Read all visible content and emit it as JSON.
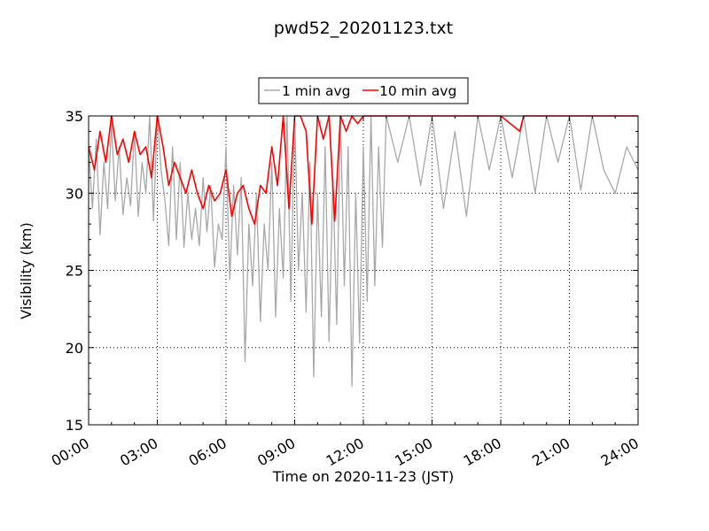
{
  "chart_data": {
    "type": "line",
    "title": "pwd52_20201123.txt",
    "xlabel": "Time on 2020-11-23 (JST)",
    "ylabel": "Visibility (km)",
    "xlim": [
      "00:00",
      "24:00"
    ],
    "ylim": [
      15,
      35
    ],
    "x_ticks": [
      "00:00",
      "03:00",
      "06:00",
      "09:00",
      "12:00",
      "15:00",
      "18:00",
      "21:00",
      "24:00"
    ],
    "y_ticks": [
      "15",
      "20",
      "25",
      "30",
      "35"
    ],
    "grid": true,
    "legend": {
      "placement": "top-center",
      "entries": [
        "1 min avg",
        "10 min avg"
      ]
    },
    "colors": {
      "one_min": "#a8a8a8",
      "ten_min": "#ff0000"
    },
    "series": [
      {
        "name": "1 min avg",
        "color": "#a8a8a8",
        "description_points": [
          [
            "00:00",
            33.0
          ],
          [
            "00:10",
            29.0
          ],
          [
            "00:20",
            33.5
          ],
          [
            "00:30",
            27.3
          ],
          [
            "00:40",
            32.0
          ],
          [
            "00:50",
            29.0
          ],
          [
            "01:00",
            34.5
          ],
          [
            "01:10",
            29.5
          ],
          [
            "01:20",
            33.0
          ],
          [
            "01:30",
            28.6
          ],
          [
            "01:40",
            31.0
          ],
          [
            "01:50",
            29.2
          ],
          [
            "02:00",
            34.0
          ],
          [
            "02:10",
            28.5
          ],
          [
            "02:20",
            32.0
          ],
          [
            "02:30",
            30.0
          ],
          [
            "02:40",
            35.0
          ],
          [
            "02:50",
            28.2
          ],
          [
            "03:00",
            35.0
          ],
          [
            "03:10",
            31.5
          ],
          [
            "03:20",
            29.5
          ],
          [
            "03:30",
            26.6
          ],
          [
            "03:40",
            33.0
          ],
          [
            "03:50",
            27.0
          ],
          [
            "04:00",
            32.0
          ],
          [
            "04:10",
            26.5
          ],
          [
            "04:20",
            30.0
          ],
          [
            "04:30",
            27.0
          ],
          [
            "04:40",
            29.0
          ],
          [
            "04:50",
            26.6
          ],
          [
            "05:00",
            31.0
          ],
          [
            "05:10",
            27.5
          ],
          [
            "05:20",
            30.5
          ],
          [
            "05:30",
            25.2
          ],
          [
            "05:40",
            28.0
          ],
          [
            "05:50",
            27.0
          ],
          [
            "06:00",
            33.0
          ],
          [
            "06:10",
            24.4
          ],
          [
            "06:20",
            30.5
          ],
          [
            "06:30",
            26.0
          ],
          [
            "06:40",
            31.0
          ],
          [
            "06:50",
            19.1
          ],
          [
            "07:00",
            28.0
          ],
          [
            "07:10",
            24.0
          ],
          [
            "07:20",
            30.0
          ],
          [
            "07:30",
            21.7
          ],
          [
            "07:40",
            28.0
          ],
          [
            "07:50",
            25.0
          ],
          [
            "08:00",
            32.0
          ],
          [
            "08:10",
            22.0
          ],
          [
            "08:20",
            29.0
          ],
          [
            "08:30",
            24.5
          ],
          [
            "08:40",
            35.0
          ],
          [
            "08:50",
            23.0
          ],
          [
            "09:00",
            35.0
          ],
          [
            "09:10",
            25.0
          ],
          [
            "09:20",
            30.0
          ],
          [
            "09:30",
            22.3
          ],
          [
            "09:40",
            32.0
          ],
          [
            "09:50",
            18.1
          ],
          [
            "10:00",
            30.0
          ],
          [
            "10:10",
            22.0
          ],
          [
            "10:20",
            33.0
          ],
          [
            "10:30",
            20.4
          ],
          [
            "10:40",
            31.0
          ],
          [
            "10:50",
            21.5
          ],
          [
            "11:00",
            35.0
          ],
          [
            "11:10",
            24.0
          ],
          [
            "11:20",
            33.0
          ],
          [
            "11:30",
            17.5
          ],
          [
            "11:40",
            30.0
          ],
          [
            "11:50",
            20.3
          ],
          [
            "12:00",
            33.0
          ],
          [
            "12:10",
            23.0
          ],
          [
            "12:20",
            35.0
          ],
          [
            "12:30",
            24.0
          ],
          [
            "12:40",
            33.0
          ],
          [
            "12:50",
            26.5
          ],
          [
            "13:00",
            35.0
          ],
          [
            "13:30",
            32.0
          ],
          [
            "14:00",
            35.0
          ],
          [
            "14:30",
            30.5
          ],
          [
            "15:00",
            35.0
          ],
          [
            "15:30",
            29.0
          ],
          [
            "16:00",
            34.0
          ],
          [
            "16:30",
            28.5
          ],
          [
            "17:00",
            35.0
          ],
          [
            "17:30",
            31.5
          ],
          [
            "18:00",
            35.0
          ],
          [
            "18:30",
            31.0
          ],
          [
            "19:00",
            35.0
          ],
          [
            "19:30",
            30.0
          ],
          [
            "20:00",
            35.0
          ],
          [
            "20:30",
            32.0
          ],
          [
            "21:00",
            35.0
          ],
          [
            "21:30",
            30.2
          ],
          [
            "22:00",
            35.0
          ],
          [
            "22:30",
            31.5
          ],
          [
            "23:00",
            30.0
          ],
          [
            "23:30",
            33.0
          ],
          [
            "24:00",
            31.5
          ]
        ]
      },
      {
        "name": "10 min avg",
        "color": "#ff0000",
        "description_points": [
          [
            "00:00",
            33.0
          ],
          [
            "00:15",
            31.5
          ],
          [
            "00:30",
            34.0
          ],
          [
            "00:45",
            32.0
          ],
          [
            "01:00",
            35.0
          ],
          [
            "01:15",
            32.5
          ],
          [
            "01:30",
            33.5
          ],
          [
            "01:45",
            32.0
          ],
          [
            "02:00",
            34.0
          ],
          [
            "02:15",
            32.5
          ],
          [
            "02:30",
            33.0
          ],
          [
            "02:45",
            31.0
          ],
          [
            "03:00",
            35.0
          ],
          [
            "03:15",
            33.0
          ],
          [
            "03:30",
            30.5
          ],
          [
            "03:45",
            32.0
          ],
          [
            "04:00",
            31.0
          ],
          [
            "04:15",
            30.0
          ],
          [
            "04:30",
            31.5
          ],
          [
            "04:45",
            30.0
          ],
          [
            "05:00",
            29.0
          ],
          [
            "05:15",
            30.5
          ],
          [
            "05:30",
            29.5
          ],
          [
            "05:45",
            30.0
          ],
          [
            "06:00",
            31.5
          ],
          [
            "06:15",
            28.5
          ],
          [
            "06:30",
            30.0
          ],
          [
            "06:45",
            30.5
          ],
          [
            "07:00",
            29.0
          ],
          [
            "07:15",
            28.0
          ],
          [
            "07:30",
            30.5
          ],
          [
            "07:45",
            30.0
          ],
          [
            "08:00",
            33.0
          ],
          [
            "08:15",
            30.5
          ],
          [
            "08:30",
            35.0
          ],
          [
            "08:45",
            29.0
          ],
          [
            "09:00",
            35.0
          ],
          [
            "09:15",
            35.0
          ],
          [
            "09:30",
            34.0
          ],
          [
            "09:45",
            28.0
          ],
          [
            "10:00",
            35.0
          ],
          [
            "10:15",
            33.5
          ],
          [
            "10:30",
            35.0
          ],
          [
            "10:45",
            28.2
          ],
          [
            "11:00",
            35.0
          ],
          [
            "11:15",
            34.0
          ],
          [
            "11:30",
            35.0
          ],
          [
            "11:45",
            34.5
          ],
          [
            "12:00",
            35.0
          ],
          [
            "18:00",
            35.0
          ],
          [
            "18:50",
            34.0
          ],
          [
            "19:00",
            35.0
          ],
          [
            "24:00",
            35.0
          ]
        ]
      }
    ]
  }
}
